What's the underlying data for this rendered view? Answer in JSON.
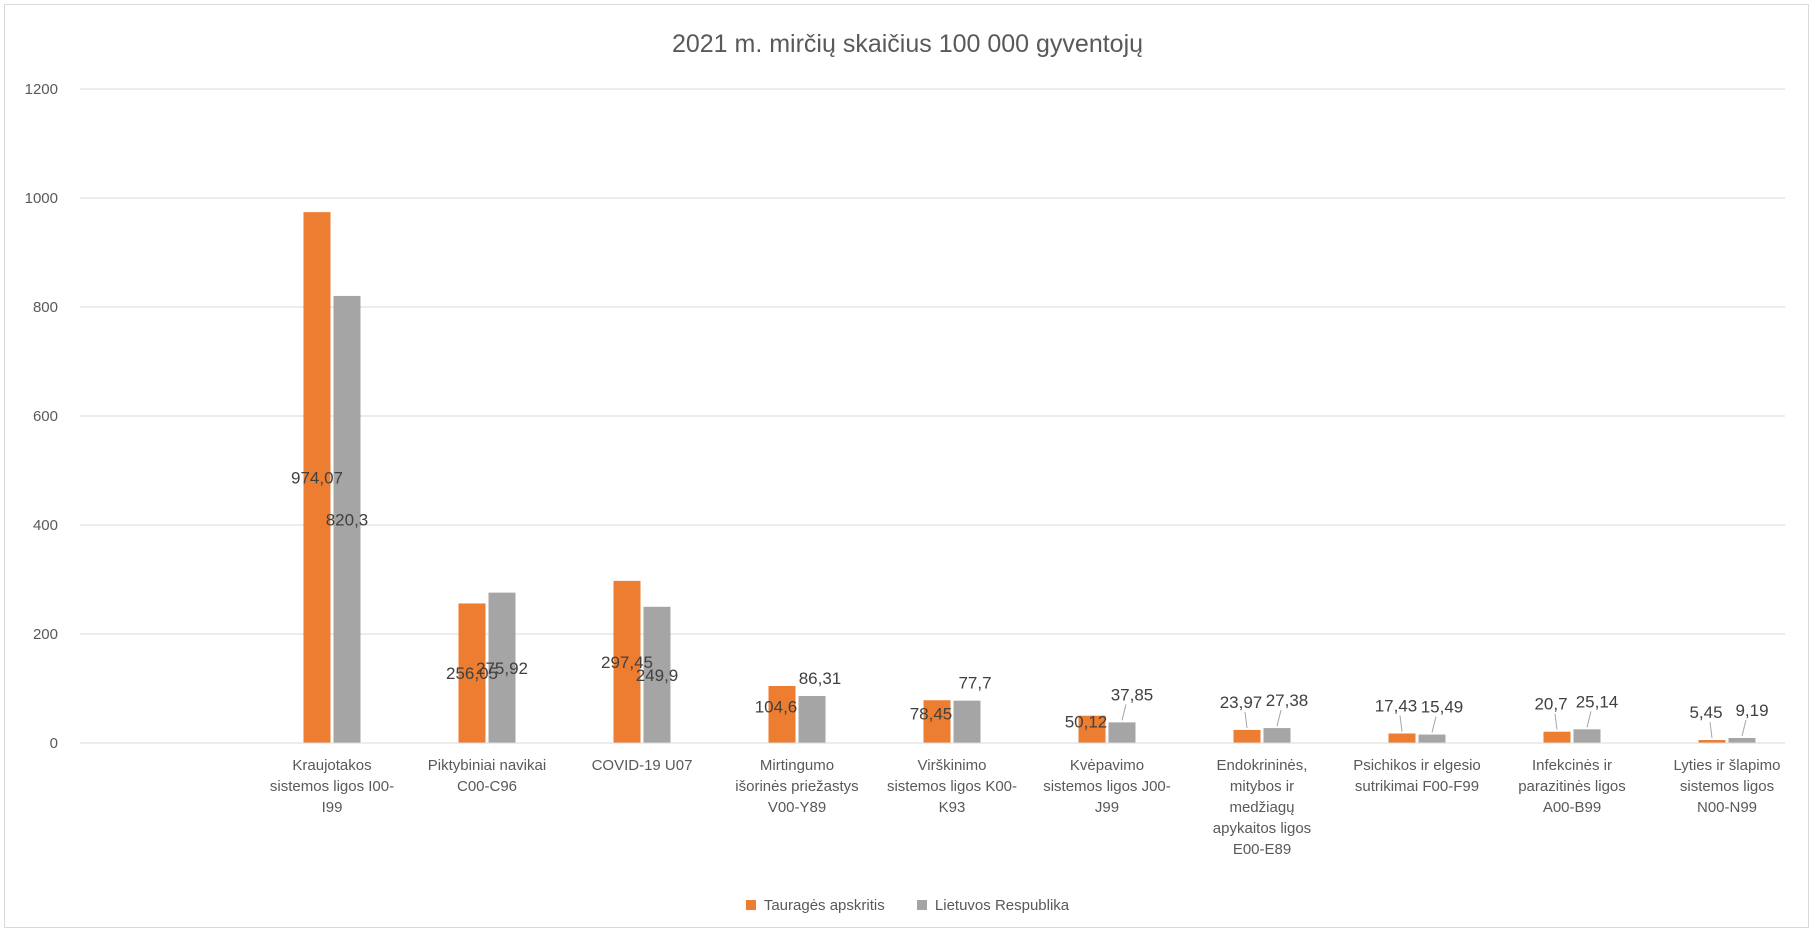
{
  "chart_data": {
    "type": "bar",
    "title": "2021 m. mirčių skaičius 100 000 gyventojų",
    "categories": [
      [
        "Kraujotakos",
        "sistemos ligos I00-",
        "I99"
      ],
      [
        "Piktybiniai navikai",
        "C00-C96"
      ],
      [
        "COVID-19 U07"
      ],
      [
        "Mirtingumo",
        "išorinės priežastys",
        "V00-Y89"
      ],
      [
        "Virškinimo",
        "sistemos ligos K00-",
        "K93"
      ],
      [
        "Kvėpavimo",
        "sistemos ligos J00-",
        "J99"
      ],
      [
        "Endokrininės,",
        "mitybos ir",
        "medžiagų",
        "apykaitos ligos",
        "E00-E89"
      ],
      [
        "Psichikos ir elgesio",
        "sutrikimai F00-F99"
      ],
      [
        "Infekcinės ir",
        "parazitinės ligos",
        "A00-B99"
      ],
      [
        "Lyties ir šlapimo",
        "sistemos ligos",
        "N00-N99"
      ]
    ],
    "series": [
      {
        "name": "Tauragės apskritis",
        "color": "#ed7d31",
        "values": [
          974.07,
          256.05,
          297.45,
          104.6,
          78.45,
          50.12,
          23.97,
          17.43,
          20.7,
          5.45
        ],
        "labels": [
          "974,07",
          "256,05",
          "297,45",
          "104,6",
          "78,45",
          "50,12",
          "23,97",
          "17,43",
          "20,7",
          "5,45"
        ]
      },
      {
        "name": "Lietuvos Respublika",
        "color": "#a5a5a5",
        "values": [
          820.3,
          275.92,
          249.9,
          86.31,
          77.7,
          37.85,
          27.38,
          15.49,
          25.14,
          9.19
        ],
        "labels": [
          "820,3",
          "275,92",
          "249,9",
          "86,31",
          "77,7",
          "37,85",
          "27,38",
          "15,49",
          "25,14",
          "9,19"
        ]
      }
    ],
    "yticks": [
      "0",
      "200",
      "400",
      "600",
      "800",
      "1000",
      "1200"
    ],
    "ylim": [
      0,
      1200
    ],
    "grid": true,
    "legend_position": "bottom"
  }
}
